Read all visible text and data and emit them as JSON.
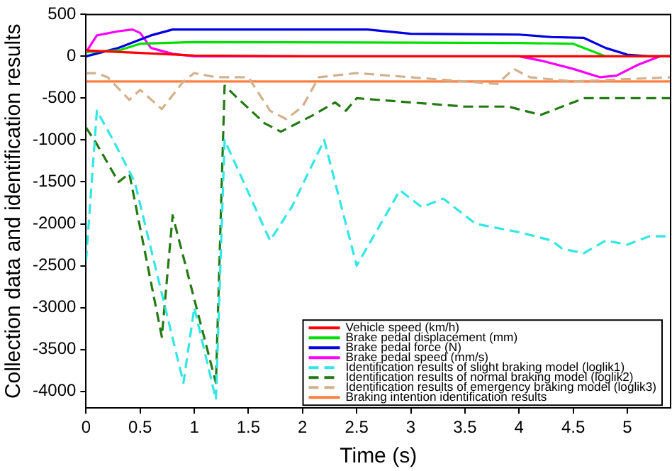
{
  "chart_data": {
    "type": "line",
    "xlabel": "Time (s)",
    "ylabel": "Collection data and identification results",
    "xlim": [
      0,
      5.4
    ],
    "ylim": [
      -4200,
      500
    ],
    "xticks": [
      0,
      0.5,
      1,
      1.5,
      2,
      2.5,
      3,
      3.5,
      4,
      4.5,
      5
    ],
    "yticks": [
      -4000,
      -3500,
      -3000,
      -2500,
      -2000,
      -1500,
      -1000,
      -500,
      0,
      500
    ],
    "grid": false,
    "legend": "bottom right",
    "marker": "none",
    "series": [
      {
        "name": "Vehicle speed (km/h)",
        "color": "#ff0000",
        "line_style": "solid",
        "x": [
          0,
          0.5,
          1,
          2,
          5.4
        ],
        "values": [
          70,
          40,
          10,
          0,
          0
        ]
      },
      {
        "name": "Brake pedal displacement (mm)",
        "color": "#00e000",
        "line_style": "solid",
        "x": [
          0,
          0.3,
          0.5,
          1,
          4,
          4.5,
          4.8,
          5.4
        ],
        "values": [
          50,
          70,
          150,
          170,
          160,
          150,
          0,
          0
        ]
      },
      {
        "name": "Brake pedal force (N)",
        "color": "#0000e0",
        "line_style": "solid",
        "x": [
          0,
          0.3,
          0.6,
          0.8,
          2.6,
          3,
          4,
          4.3,
          4.6,
          4.8,
          5,
          5.2,
          5.4
        ],
        "values": [
          0,
          100,
          250,
          320,
          320,
          270,
          260,
          230,
          220,
          100,
          20,
          0,
          0
        ]
      },
      {
        "name": "Brake pedal speed (mm/s)",
        "color": "#ff00ff",
        "line_style": "solid",
        "x": [
          0,
          0.1,
          0.3,
          0.43,
          0.5,
          0.6,
          0.8,
          1,
          4,
          4.2,
          4.5,
          4.75,
          4.9,
          5.1,
          5.3,
          5.4
        ],
        "values": [
          50,
          250,
          300,
          320,
          280,
          100,
          30,
          0,
          0,
          -50,
          -150,
          -250,
          -230,
          -100,
          0,
          0
        ]
      },
      {
        "name": "Identification results of slight braking model (loglik1)",
        "color": "#33e6e6",
        "line_style": "dashed",
        "x": [
          0,
          0.1,
          0.25,
          0.45,
          0.9,
          1,
          1.2,
          1.28,
          1.7,
          1.9,
          2.2,
          2.5,
          2.9,
          3.1,
          3.3,
          3.6,
          4,
          4.3,
          4.4,
          4.6,
          4.8,
          5,
          5.2,
          5.4
        ],
        "values": [
          -2440,
          -650,
          -1000,
          -1500,
          -3900,
          -3000,
          -4100,
          -1000,
          -2200,
          -1800,
          -1000,
          -2500,
          -1600,
          -1800,
          -1700,
          -2000,
          -2100,
          -2200,
          -2300,
          -2350,
          -2200,
          -2250,
          -2150,
          -2150
        ]
      },
      {
        "name": "Identification results of normal braking model (loglik2)",
        "color": "#237a12",
        "line_style": "dashed",
        "x": [
          0,
          0.1,
          0.3,
          0.4,
          0.7,
          0.8,
          1.2,
          1.28,
          1.4,
          1.65,
          1.8,
          2.1,
          2.3,
          2.4,
          2.5,
          3,
          3.5,
          3.9,
          4.2,
          4.6,
          5.4
        ],
        "values": [
          -850,
          -1050,
          -1500,
          -1400,
          -3350,
          -1900,
          -3900,
          -350,
          -500,
          -800,
          -900,
          -700,
          -550,
          -650,
          -500,
          -550,
          -600,
          -600,
          -700,
          -500,
          -500
        ]
      },
      {
        "name": "Identification results of emergency braking model (loglik3)",
        "color": "#d4b08c",
        "line_style": "dashed",
        "x": [
          0,
          0.1,
          0.2,
          0.4,
          0.5,
          0.7,
          0.9,
          1,
          1.2,
          1.5,
          1.7,
          1.85,
          2,
          2.15,
          2.5,
          3,
          3.5,
          3.8,
          3.95,
          4.1,
          4.5,
          5.4
        ],
        "values": [
          -200,
          -200,
          -250,
          -520,
          -400,
          -630,
          -300,
          -200,
          -250,
          -250,
          -650,
          -750,
          -600,
          -250,
          -200,
          -250,
          -300,
          -330,
          -150,
          -250,
          -300,
          -250
        ]
      },
      {
        "name": "Braking intention identification results",
        "color": "#ff7f3f",
        "line_style": "solid",
        "x": [
          0,
          5.4
        ],
        "values": [
          -300,
          -300
        ]
      }
    ]
  }
}
